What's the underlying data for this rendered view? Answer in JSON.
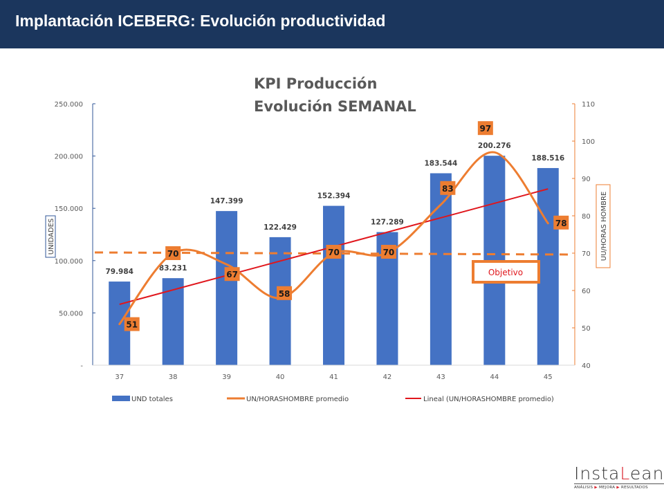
{
  "header": {
    "title": "Implantación ICEBERG: Evolución productividad"
  },
  "logo": {
    "part1": "Insta",
    "accent": "L",
    "part2": "ean",
    "tagline": [
      "ANÁLISIS",
      "MEJORA",
      "RESULTADOS"
    ],
    "arrow": "▶"
  },
  "colors": {
    "header_bg": "#1b365d",
    "bar": "#4472c4",
    "line": "#ed7d31",
    "trend": "#e0161c",
    "target": "#ed7d31",
    "label_box": "#ed7d31"
  },
  "chart_data": {
    "type": "bar",
    "title": [
      "KPI Producción",
      "Evolución SEMANAL"
    ],
    "xlabel": "",
    "ylabel": "UNIDADES",
    "y2label": "UU/HORAS HOMBRE",
    "categories": [
      "37",
      "38",
      "39",
      "40",
      "41",
      "42",
      "43",
      "44",
      "45"
    ],
    "ylim": [
      0,
      250000
    ],
    "y2lim": [
      40,
      110
    ],
    "yticks": [
      0,
      50000,
      100000,
      150000,
      200000,
      250000
    ],
    "ytick_labels": [
      "-",
      "50.000",
      "100.000",
      "150.000",
      "200.000",
      "250.000"
    ],
    "y2ticks": [
      40,
      50,
      60,
      70,
      80,
      90,
      100,
      110
    ],
    "y2tick_labels": [
      "40",
      "50",
      "60",
      "70",
      "80",
      "90",
      "100",
      "110"
    ],
    "series": [
      {
        "name": "UND totales",
        "type": "bar",
        "axis": "left",
        "values": [
          79984,
          83231,
          147399,
          122429,
          152394,
          127289,
          183544,
          200276,
          188516
        ],
        "labels": [
          "79.984",
          "83.231",
          "147.399",
          "122.429",
          "152.394",
          "127.289",
          "183.544",
          "200.276",
          "188.516"
        ]
      },
      {
        "name": "UN/HORASHOMBRE promedio",
        "type": "line-smooth",
        "axis": "right",
        "values": [
          51,
          70,
          67,
          58,
          70,
          70,
          83,
          97,
          78
        ],
        "labels": [
          "51",
          "70",
          "67",
          "58",
          "70",
          "70",
          "83",
          "97",
          "78"
        ]
      },
      {
        "name": "Lineal (UN/HORASHOMBRE promedio)",
        "type": "trendline",
        "axis": "right",
        "start": 56.3,
        "end": 87.2
      }
    ],
    "target": {
      "label": "Objetivo",
      "value": 70,
      "axis": "right"
    },
    "legend": {
      "position": "bottom",
      "entries": [
        "UND totales",
        "UN/HORASHOMBRE promedio",
        "Lineal (UN/HORASHOMBRE promedio)"
      ]
    },
    "grid": false
  }
}
